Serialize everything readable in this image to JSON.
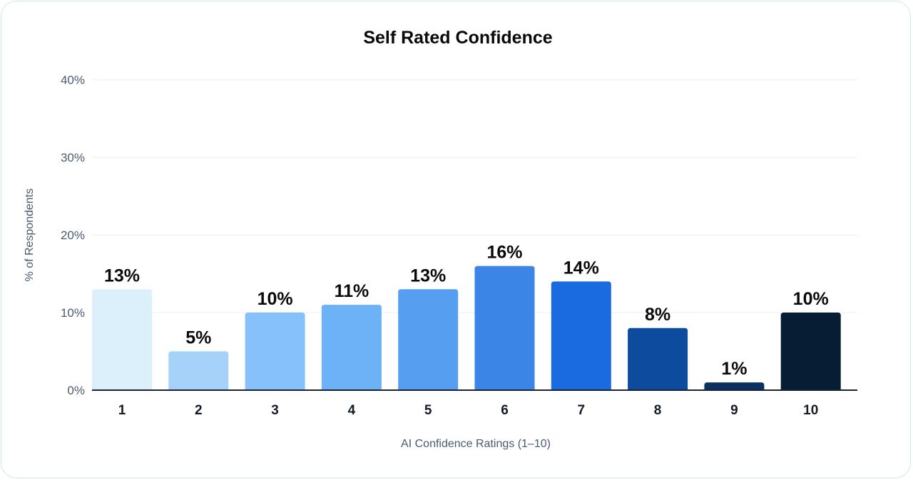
{
  "chart_data": {
    "type": "bar",
    "title": "Self Rated Confidence",
    "xlabel": "AI Confidence Ratings (1–10)",
    "ylabel": "% of Respondents",
    "categories": [
      "1",
      "2",
      "3",
      "4",
      "5",
      "6",
      "7",
      "8",
      "9",
      "10"
    ],
    "values": [
      13,
      5,
      10,
      11,
      13,
      16,
      14,
      8,
      1,
      10
    ],
    "value_labels": [
      "13%",
      "5%",
      "10%",
      "11%",
      "13%",
      "16%",
      "14%",
      "8%",
      "1%",
      "10%"
    ],
    "bar_colors": [
      "#dcf0fb",
      "#a6d2f9",
      "#86c1fb",
      "#6db2f6",
      "#559ef0",
      "#3a85e6",
      "#1a6ae0",
      "#0d4b9e",
      "#0b3163",
      "#071d33"
    ],
    "ylim": [
      0,
      40
    ],
    "yticks": [
      0,
      10,
      20,
      30,
      40
    ],
    "ytick_labels": [
      "0%",
      "10%",
      "20%",
      "30%",
      "40%"
    ],
    "grid": true,
    "legend": "none"
  }
}
